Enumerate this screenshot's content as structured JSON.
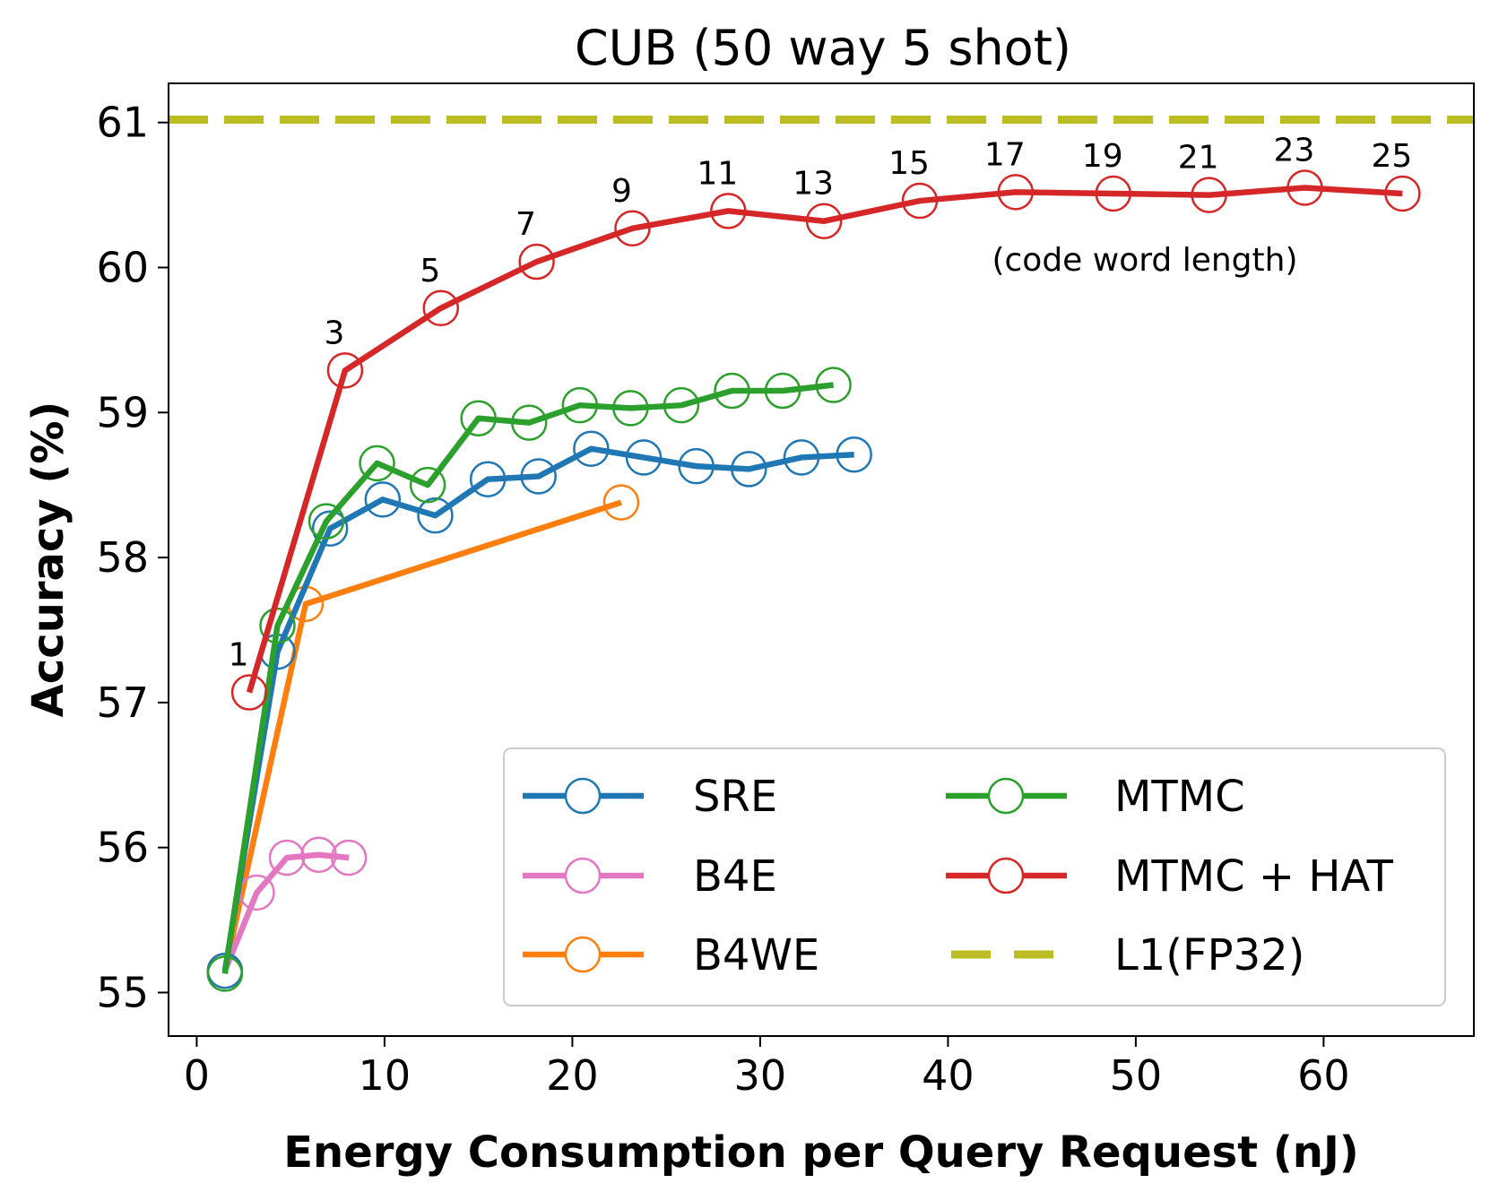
{
  "chart_data": {
    "type": "line",
    "title": "CUB (50 way 5 shot)",
    "xlabel": "Energy Consumption per Query Request (nJ)",
    "ylabel": "Accuracy (%)",
    "xlim": [
      -1.5,
      68
    ],
    "ylim": [
      54.7,
      61.27
    ],
    "xticks": [
      "0",
      "10",
      "20",
      "30",
      "40",
      "50",
      "60"
    ],
    "yticks": [
      "55",
      "56",
      "57",
      "58",
      "59",
      "60",
      "61"
    ],
    "grid": false,
    "legend_position": "lower-right",
    "annotation": "(code word length)",
    "series": [
      {
        "name": "SRE",
        "color": "#1f77b4",
        "x": [
          1.5,
          4.3,
          7.1,
          9.9,
          12.7,
          15.5,
          18.2,
          21.0,
          23.8,
          26.6,
          29.4,
          32.2,
          35.0
        ],
        "y": [
          55.15,
          57.35,
          58.2,
          58.4,
          58.29,
          58.54,
          58.56,
          58.75,
          58.69,
          58.63,
          58.61,
          58.69,
          58.71
        ]
      },
      {
        "name": "B4E",
        "color": "#e377c2",
        "x": [
          1.5,
          3.2,
          4.8,
          6.5,
          8.1
        ],
        "y": [
          55.15,
          55.69,
          55.93,
          55.95,
          55.93
        ]
      },
      {
        "name": "B4WE",
        "color": "#ff7f0e",
        "x": [
          1.5,
          5.8,
          22.6
        ],
        "y": [
          55.15,
          57.68,
          58.38
        ]
      },
      {
        "name": "MTMC",
        "color": "#2ca02c",
        "x": [
          1.5,
          4.3,
          6.9,
          9.6,
          12.3,
          15.0,
          17.7,
          20.4,
          23.1,
          25.8,
          28.5,
          31.2,
          33.9
        ],
        "y": [
          55.13,
          57.53,
          58.25,
          58.65,
          58.5,
          58.96,
          58.93,
          59.05,
          59.03,
          59.05,
          59.15,
          59.15,
          59.19
        ]
      },
      {
        "name": "MTMC + HAT",
        "color": "#d62728",
        "x": [
          2.8,
          7.9,
          13.0,
          18.1,
          23.2,
          28.3,
          33.4,
          38.5,
          43.6,
          48.8,
          53.9,
          59.0,
          64.2
        ],
        "y": [
          57.07,
          59.29,
          59.72,
          60.04,
          60.27,
          60.39,
          60.32,
          60.46,
          60.52,
          60.51,
          60.5,
          60.55,
          60.51
        ],
        "point_labels": [
          "1",
          "3",
          "5",
          "7",
          "9",
          "11",
          "13",
          "15",
          "17",
          "19",
          "21",
          "23",
          "25"
        ]
      },
      {
        "name": "L1(FP32)",
        "color": "#bcbd22",
        "style": "dashed",
        "y": 61.02
      }
    ]
  }
}
